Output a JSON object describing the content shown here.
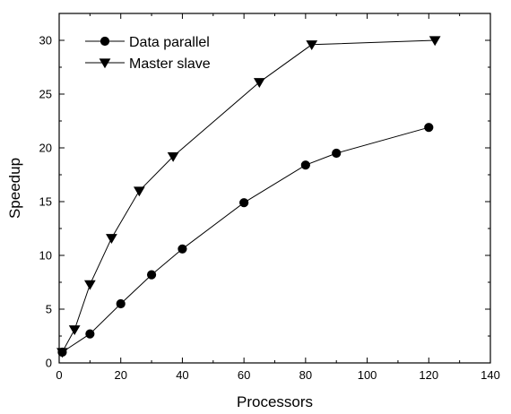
{
  "chart_data": {
    "type": "line",
    "title": "",
    "xlabel": "Processors",
    "ylabel": "Speedup",
    "xlim": [
      0,
      140
    ],
    "ylim": [
      0,
      32.5
    ],
    "x_ticks": [
      0,
      20,
      40,
      60,
      80,
      100,
      120,
      140
    ],
    "y_ticks": [
      0,
      5,
      10,
      15,
      20,
      25,
      30
    ],
    "grid": false,
    "legend_position": "top-left",
    "series": [
      {
        "name": "Data parallel",
        "marker": "circle",
        "color": "#000000",
        "points": [
          {
            "x": 1,
            "y": 1.0
          },
          {
            "x": 10,
            "y": 2.7
          },
          {
            "x": 20,
            "y": 5.5
          },
          {
            "x": 30,
            "y": 8.2
          },
          {
            "x": 40,
            "y": 10.6
          },
          {
            "x": 60,
            "y": 14.9
          },
          {
            "x": 80,
            "y": 18.4
          },
          {
            "x": 90,
            "y": 19.5
          },
          {
            "x": 120,
            "y": 21.9
          }
        ]
      },
      {
        "name": "Master slave",
        "marker": "triangle-down",
        "color": "#000000",
        "points": [
          {
            "x": 1,
            "y": 1.0
          },
          {
            "x": 5,
            "y": 3.1
          },
          {
            "x": 10,
            "y": 7.3
          },
          {
            "x": 17,
            "y": 11.6
          },
          {
            "x": 26,
            "y": 16.0
          },
          {
            "x": 37,
            "y": 19.2
          },
          {
            "x": 65,
            "y": 26.1
          },
          {
            "x": 82,
            "y": 29.6
          },
          {
            "x": 122,
            "y": 30.0
          }
        ]
      }
    ]
  }
}
